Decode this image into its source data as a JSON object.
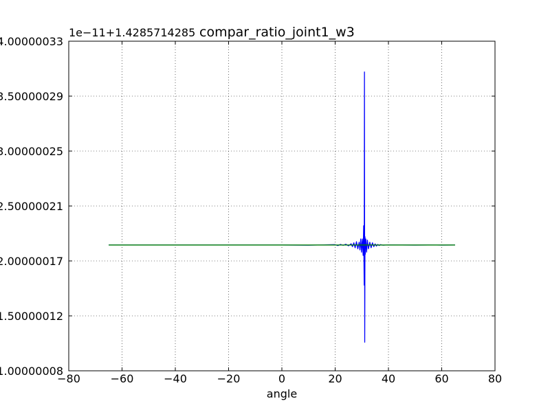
{
  "chart_data": {
    "type": "line",
    "title": "compar_ratio_joint1_w3",
    "offset_label": "1e−11+1.4285714285",
    "xlabel": "angle",
    "ylabel": "",
    "xlim": [
      -80,
      80
    ],
    "ylim": [
      1.00000008,
      4.00000033
    ],
    "xticks": [
      {
        "value": -80,
        "label": "−80"
      },
      {
        "value": -60,
        "label": "−60"
      },
      {
        "value": -40,
        "label": "−40"
      },
      {
        "value": -20,
        "label": "−20"
      },
      {
        "value": 0,
        "label": "0"
      },
      {
        "value": 20,
        "label": "20"
      },
      {
        "value": 40,
        "label": "40"
      },
      {
        "value": 60,
        "label": "60"
      },
      {
        "value": 80,
        "label": "80"
      }
    ],
    "yticks": [
      {
        "value": 1.00000008,
        "label": "1.00000008"
      },
      {
        "value": 1.50000012,
        "label": "1.50000012"
      },
      {
        "value": 2.00000017,
        "label": "2.00000017"
      },
      {
        "value": 2.50000021,
        "label": "2.50000021"
      },
      {
        "value": 3.00000025,
        "label": "3.00000025"
      },
      {
        "value": 3.50000029,
        "label": "3.50000029"
      },
      {
        "value": 4.00000033,
        "label": "4.00000033"
      }
    ],
    "grid": true,
    "series": [
      {
        "color": "#0000ff",
        "x": [
          -65,
          -40,
          -20,
          0,
          10,
          20,
          21,
          22,
          23,
          24,
          25,
          26,
          26.5,
          27,
          27.5,
          28,
          28.5,
          29,
          29.3,
          29.6,
          29.9,
          30.2,
          30.5,
          30.7,
          30.9,
          31.0,
          31.1,
          31.2,
          31.3,
          31.5,
          31.8,
          32.1,
          32.5,
          33,
          33.5,
          34,
          34.5,
          35,
          35.5,
          36,
          36.5,
          37,
          38,
          40,
          45,
          50,
          55,
          60,
          65
        ],
        "y": [
          2.145,
          2.145,
          2.145,
          2.145,
          2.143,
          2.148,
          2.14,
          2.15,
          2.142,
          2.152,
          2.138,
          2.156,
          2.13,
          2.165,
          2.12,
          2.175,
          2.11,
          2.17,
          2.1,
          2.2,
          2.08,
          2.2,
          2.05,
          2.32,
          1.78,
          3.72,
          1.26,
          2.22,
          2.06,
          2.2,
          2.08,
          2.19,
          2.11,
          2.17,
          2.12,
          2.165,
          2.13,
          2.155,
          2.135,
          2.15,
          2.14,
          2.148,
          2.143,
          2.146,
          2.145,
          2.144,
          2.145,
          2.144,
          2.145
        ]
      },
      {
        "color": "#008000",
        "x": [
          -65,
          -40,
          -20,
          0,
          20,
          40,
          65
        ],
        "y": [
          2.145,
          2.145,
          2.145,
          2.145,
          2.145,
          2.145,
          2.145
        ]
      }
    ]
  }
}
